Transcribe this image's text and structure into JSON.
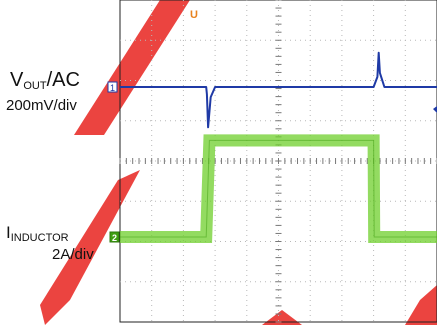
{
  "chart_data": {
    "type": "line",
    "title": "",
    "xlabel": "",
    "ylabel": "",
    "grid": true,
    "trigger_marker": "U",
    "series": [
      {
        "channel": "1",
        "name_main": "V",
        "name_sub": "OUT",
        "name_suffix": "/AC",
        "scale": "200mV/div",
        "color": "#1f3aa6",
        "x": [
          0.0,
          2.72,
          2.74,
          2.78,
          2.86,
          3.0,
          8.0,
          8.12,
          8.16,
          8.2,
          8.34,
          10.0
        ],
        "y": [
          0.0,
          0.0,
          -0.18,
          -1.0,
          -0.25,
          0.0,
          0.0,
          0.25,
          0.85,
          0.35,
          0.0,
          0.0
        ]
      },
      {
        "channel": "2",
        "name_main": "I",
        "name_sub": "INDUCTOR",
        "name_suffix": "",
        "scale": "2A/div",
        "color": "#6fcf2c",
        "ripple_div": 0.3,
        "x": [
          0.0,
          2.72,
          2.82,
          8.0,
          8.02,
          10.0
        ],
        "y": [
          0.0,
          0.0,
          2.4,
          2.4,
          0.0,
          0.0
        ]
      }
    ],
    "colors": {
      "screen_bg": "#ffffff",
      "grid": "#b8b8b8",
      "watermark": "#e8231f"
    }
  }
}
